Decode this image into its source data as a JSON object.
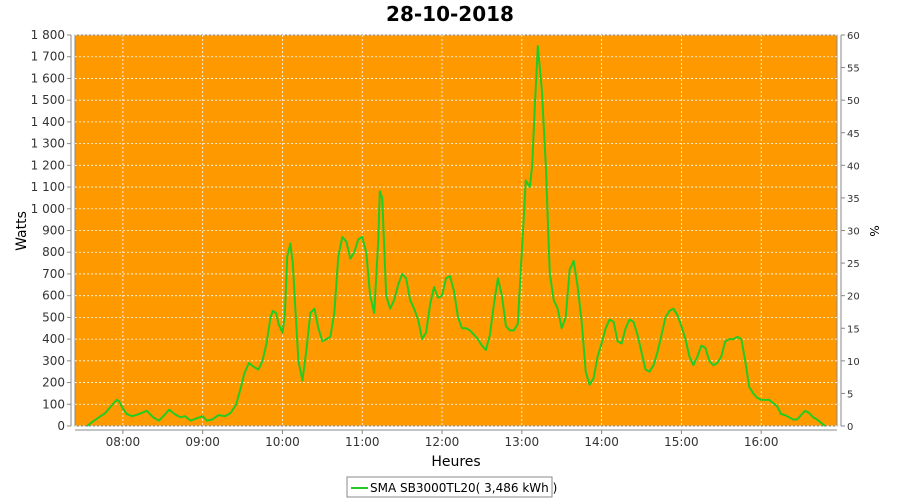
{
  "chart_data": {
    "type": "line",
    "title": "28-10-2018",
    "xlabel": "Heures",
    "ylabel": "Watts",
    "ylabel_right": "%",
    "x_tick_labels": [
      "08:00",
      "09:00",
      "10:00",
      "11:00",
      "12:00",
      "13:00",
      "14:00",
      "15:00",
      "16:00"
    ],
    "x_tick_hours": [
      8,
      9,
      10,
      11,
      12,
      13,
      14,
      15,
      16
    ],
    "xlim_hours": [
      7.4,
      16.95
    ],
    "ylim": [
      0,
      1800
    ],
    "y_ticks": [
      0,
      100,
      200,
      300,
      400,
      500,
      600,
      700,
      800,
      900,
      1000,
      1100,
      1200,
      1300,
      1400,
      1500,
      1600,
      1700,
      1800
    ],
    "y_tick_labels": [
      "0",
      "100",
      "200",
      "300",
      "400",
      "500",
      "600",
      "700",
      "800",
      "900",
      "1 000",
      "1 100",
      "1 200",
      "1 300",
      "1 400",
      "1 500",
      "1 600",
      "1 700",
      "1 800"
    ],
    "ylim_right": [
      0,
      60
    ],
    "y_ticks_right": [
      0,
      5,
      10,
      15,
      20,
      25,
      30,
      35,
      40,
      45,
      50,
      55,
      60
    ],
    "grid": true,
    "plot_background": "#FF9900",
    "legend_placement": "bottom-center",
    "series": [
      {
        "name": "SMA SB3000TL20( 3,486 kWh )",
        "color": "#22CC22",
        "x_hours": [
          7.55,
          7.62,
          7.7,
          7.78,
          7.85,
          7.92,
          7.95,
          8.0,
          8.05,
          8.12,
          8.2,
          8.3,
          8.38,
          8.45,
          8.52,
          8.58,
          8.65,
          8.72,
          8.78,
          8.85,
          8.92,
          9.0,
          9.05,
          9.12,
          9.2,
          9.28,
          9.35,
          9.42,
          9.48,
          9.52,
          9.58,
          9.65,
          9.7,
          9.75,
          9.8,
          9.85,
          9.88,
          9.92,
          9.95,
          10.0,
          10.03,
          10.06,
          10.1,
          10.13,
          10.16,
          10.2,
          10.25,
          10.3,
          10.35,
          10.4,
          10.45,
          10.5,
          10.55,
          10.6,
          10.65,
          10.7,
          10.75,
          10.8,
          10.85,
          10.9,
          10.95,
          11.0,
          11.05,
          11.1,
          11.15,
          11.2,
          11.22,
          11.25,
          11.3,
          11.35,
          11.4,
          11.45,
          11.5,
          11.55,
          11.6,
          11.65,
          11.7,
          11.75,
          11.8,
          11.85,
          11.9,
          11.95,
          12.0,
          12.05,
          12.1,
          12.15,
          12.2,
          12.25,
          12.3,
          12.35,
          12.4,
          12.45,
          12.5,
          12.55,
          12.6,
          12.65,
          12.7,
          12.75,
          12.8,
          12.85,
          12.9,
          12.95,
          13.0,
          13.05,
          13.1,
          13.13,
          13.16,
          13.2,
          13.25,
          13.3,
          13.35,
          13.4,
          13.45,
          13.5,
          13.55,
          13.6,
          13.65,
          13.7,
          13.75,
          13.8,
          13.85,
          13.9,
          13.95,
          14.0,
          14.05,
          14.1,
          14.15,
          14.2,
          14.25,
          14.3,
          14.35,
          14.4,
          14.45,
          14.5,
          14.55,
          14.6,
          14.65,
          14.7,
          14.75,
          14.8,
          14.85,
          14.9,
          14.95,
          15.0,
          15.05,
          15.1,
          15.15,
          15.2,
          15.25,
          15.3,
          15.35,
          15.4,
          15.45,
          15.5,
          15.55,
          15.6,
          15.65,
          15.7,
          15.75,
          15.8,
          15.85,
          15.9,
          15.95,
          16.0,
          16.1,
          16.2,
          16.25,
          16.3,
          16.35,
          16.4,
          16.45,
          16.5,
          16.55,
          16.6,
          16.65,
          16.7,
          16.75,
          16.8
        ],
        "values": [
          0,
          20,
          40,
          60,
          90,
          120,
          115,
          80,
          55,
          45,
          55,
          70,
          40,
          25,
          50,
          75,
          55,
          40,
          45,
          25,
          35,
          45,
          25,
          30,
          50,
          45,
          60,
          100,
          180,
          240,
          290,
          270,
          260,
          300,
          380,
          500,
          530,
          520,
          470,
          430,
          510,
          780,
          840,
          750,
          550,
          300,
          210,
          350,
          520,
          540,
          450,
          390,
          400,
          410,
          520,
          780,
          870,
          850,
          770,
          800,
          860,
          870,
          800,
          600,
          520,
          850,
          1080,
          1050,
          600,
          540,
          580,
          650,
          700,
          680,
          580,
          540,
          490,
          400,
          430,
          560,
          640,
          590,
          600,
          680,
          690,
          620,
          500,
          450,
          450,
          440,
          420,
          400,
          370,
          350,
          420,
          560,
          680,
          600,
          460,
          440,
          440,
          470,
          800,
          1130,
          1100,
          1200,
          1450,
          1750,
          1550,
          1200,
          700,
          580,
          540,
          450,
          500,
          720,
          760,
          640,
          480,
          250,
          190,
          220,
          320,
          380,
          450,
          490,
          480,
          390,
          380,
          450,
          490,
          480,
          420,
          340,
          260,
          250,
          280,
          340,
          420,
          500,
          530,
          540,
          510,
          460,
          400,
          320,
          280,
          320,
          370,
          360,
          300,
          280,
          290,
          320,
          390,
          400,
          400,
          410,
          400,
          300,
          180,
          150,
          130,
          120,
          120,
          90,
          55,
          50,
          40,
          30,
          30,
          50,
          70,
          60,
          40,
          30,
          15,
          0
        ]
      }
    ]
  }
}
